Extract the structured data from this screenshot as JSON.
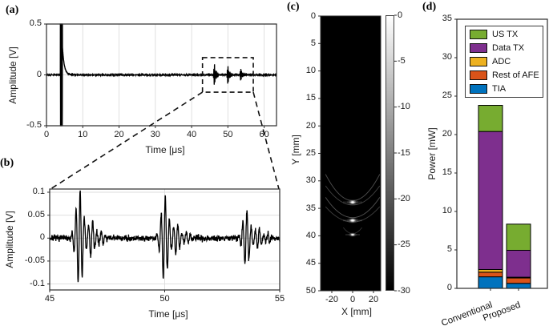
{
  "chart_data": [
    {
      "id": "a",
      "type": "line",
      "tag": "(a)",
      "xlabel": "Time [μs]",
      "ylabel": "Amplitude [V]",
      "xlim": [
        0,
        63.4
      ],
      "ylim": [
        -0.5,
        0.5
      ],
      "xticks": [
        0,
        10,
        20,
        30,
        40,
        50,
        60
      ],
      "yticks": [
        0.5,
        0,
        -0.5
      ],
      "grid": true,
      "signal": {
        "noise_v": 0.007,
        "carrier_cycles_per_us": 5.5,
        "tx_spike": {
          "t_start_us": 3.82,
          "t_end_us": 4.42,
          "clip_v": 0.5,
          "tail_v": 0.27
        },
        "echoes": [
          {
            "t_us": 46.3,
            "amp_v": 0.105
          },
          {
            "t_us": 50.0,
            "amp_v": 0.09
          },
          {
            "t_us": 53.55,
            "amp_v": 0.06
          }
        ]
      },
      "zoom_box": {
        "t_us": [
          43.0,
          57.0
        ],
        "v": [
          -0.17,
          0.17
        ]
      }
    },
    {
      "id": "b",
      "type": "line",
      "tag": "(b)",
      "xlabel": "Time [μs]",
      "ylabel": "Amplitude [V]",
      "xlim": [
        45,
        55
      ],
      "ylim": [
        -0.113,
        0.107
      ],
      "xticks": [
        45,
        50,
        55
      ],
      "yticks": [
        0.1,
        0.05,
        0,
        -0.05,
        -0.1
      ],
      "grid": true,
      "signal": {
        "noise_v": 0.01,
        "carrier_cycles_per_us": 5.5,
        "echoes": [
          {
            "t_us": 46.3,
            "amp_v": 0.105
          },
          {
            "t_us": 50.0,
            "amp_v": 0.09
          },
          {
            "t_us": 53.55,
            "amp_v": 0.06
          }
        ]
      }
    },
    {
      "id": "c",
      "type": "heatmap",
      "tag": "(c)",
      "xlabel": "X [mm]",
      "ylabel": "Y [mm]",
      "xlim": [
        -28,
        28
      ],
      "ylim": [
        0,
        50
      ],
      "xticks": [
        -20,
        0,
        20
      ],
      "yticks": [
        0,
        5,
        10,
        15,
        20,
        25,
        30,
        35,
        40,
        45,
        50
      ],
      "background": "#000000",
      "colorbar": {
        "max": 0,
        "min": -30,
        "ticks": [
          0,
          -5,
          -10,
          -15,
          -20,
          -25,
          -30
        ]
      },
      "targets": [
        {
          "x_mm": 0,
          "y_mm": 33.9,
          "size": 1.0
        },
        {
          "x_mm": 0,
          "y_mm": 37.2,
          "size": 1.0
        },
        {
          "x_mm": 0,
          "y_mm": 39.8,
          "size": 0.75
        }
      ],
      "artifact_arcs": [
        {
          "vertex_y_mm": 33.6,
          "edge_y_mm": 28.8,
          "half_width_mm": 26,
          "opacity": 0.32
        },
        {
          "vertex_y_mm": 34.4,
          "edge_y_mm": 30.9,
          "half_width_mm": 26,
          "opacity": 0.26
        },
        {
          "vertex_y_mm": 36.7,
          "edge_y_mm": 33.0,
          "half_width_mm": 26,
          "opacity": 0.32
        },
        {
          "vertex_y_mm": 37.5,
          "edge_y_mm": 34.7,
          "half_width_mm": 26,
          "opacity": 0.24
        },
        {
          "vertex_y_mm": 39.6,
          "edge_y_mm": 38.5,
          "half_width_mm": 9,
          "opacity": 0.2
        }
      ]
    },
    {
      "id": "d",
      "type": "bar",
      "stacked": true,
      "tag": "(d)",
      "xlabel": "",
      "ylabel": "Power [mW]",
      "ylim": [
        0,
        35
      ],
      "yticks": [
        0,
        5,
        10,
        15,
        20,
        25,
        30,
        35
      ],
      "categories": [
        "Conventional",
        "Proposed"
      ],
      "series": [
        {
          "name": "TIA",
          "color": "#0072BD",
          "values": [
            1.5,
            0.65
          ]
        },
        {
          "name": "Rest of AFE",
          "color": "#D95319",
          "values": [
            0.6,
            0.7
          ]
        },
        {
          "name": "ADC",
          "color": "#EDB120",
          "values": [
            0.35,
            0.1
          ]
        },
        {
          "name": "Data TX",
          "color": "#7E2F8E",
          "values": [
            17.95,
            3.5
          ]
        },
        {
          "name": "US TX",
          "color": "#77AC30",
          "values": [
            3.4,
            3.4
          ]
        }
      ],
      "totals_mW": [
        23.8,
        8.35
      ],
      "legend": {
        "order_top_to_bottom": [
          "US TX",
          "Data TX",
          "ADC",
          "Rest of AFE",
          "TIA"
        ],
        "position": "inside-top"
      }
    }
  ]
}
